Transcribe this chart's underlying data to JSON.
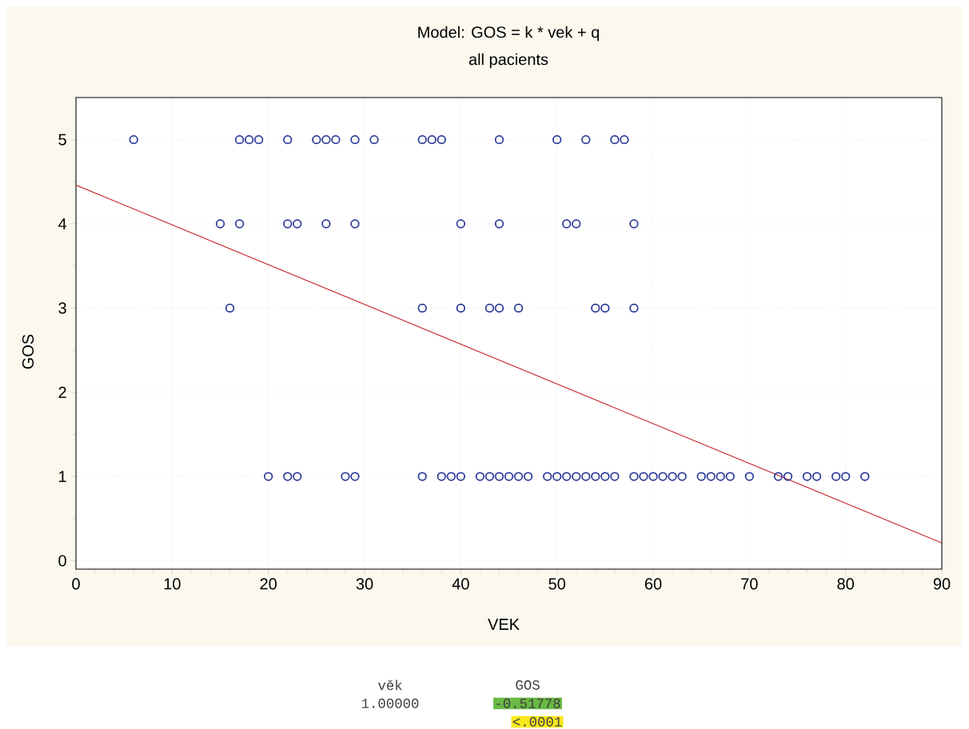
{
  "chart_data": {
    "type": "scatter",
    "title": "Model: GOS = k * vek + q",
    "subtitle": "all pacients",
    "xlabel": "VEK",
    "ylabel": "GOS",
    "series": [
      {
        "color": "#2b3a98",
        "marker": "circle",
        "x": [
          6,
          17,
          18,
          19,
          22,
          25,
          26,
          27,
          29,
          31,
          36,
          37,
          38,
          44,
          50,
          53,
          56,
          57,
          15,
          17,
          22,
          23,
          26,
          29,
          40,
          44,
          51,
          52,
          58,
          16,
          36,
          40,
          43,
          44,
          46,
          54,
          55,
          58,
          20,
          22,
          23,
          28,
          29,
          36,
          38,
          39,
          40,
          42,
          43,
          44,
          45,
          46,
          47,
          49,
          50,
          51,
          52,
          53,
          54,
          55,
          56,
          58,
          59,
          60,
          61,
          62,
          63,
          65,
          66,
          67,
          68,
          70,
          73,
          74,
          76,
          77,
          79,
          80,
          82
        ],
        "values": [
          5,
          5,
          5,
          5,
          5,
          5,
          5,
          5,
          5,
          5,
          5,
          5,
          5,
          5,
          5,
          5,
          5,
          5,
          4,
          4,
          4,
          4,
          4,
          4,
          4,
          4,
          4,
          4,
          4,
          3,
          3,
          3,
          3,
          3,
          3,
          3,
          3,
          3,
          1,
          1,
          1,
          1,
          1,
          1,
          1,
          1,
          1,
          1,
          1,
          1,
          1,
          1,
          1,
          1,
          1,
          1,
          1,
          1,
          1,
          1,
          1,
          1,
          1,
          1,
          1,
          1,
          1,
          1,
          1,
          1,
          1,
          1,
          1,
          1,
          1,
          1,
          1,
          1,
          1
        ]
      },
      {
        "type": "line",
        "color": "#c8282d",
        "x": [
          0,
          90
        ],
        "values": [
          4.46,
          0.21
        ]
      }
    ],
    "xlim": [
      0,
      90
    ],
    "xticks": [
      0,
      10,
      20,
      30,
      40,
      50,
      60,
      70,
      80,
      90
    ],
    "ylim": [
      -0.1,
      5.5
    ],
    "yticks": [
      0,
      1,
      2,
      3,
      4,
      5
    ],
    "grid": true,
    "annotations": [
      "věk",
      "GOS",
      "1.00000",
      "-0.51778",
      "<.0001"
    ]
  }
}
